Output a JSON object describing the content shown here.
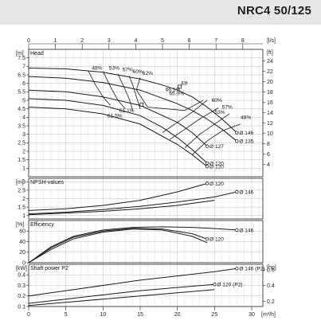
{
  "title": "NRC4 50/125",
  "colors": {
    "curve": "#1a1a1a",
    "grid": "#bdbdbd",
    "header_band": "#e6e6e6"
  },
  "chart_data": [
    {
      "type": "line",
      "panel": "head",
      "title": "Head",
      "unit_left": "[m]",
      "unit_right": "[ft]",
      "unit_top_left": "0",
      "unit_top_right": "[l/s]",
      "top_axis": {
        "label": "[l/s]",
        "ticks": [
          "0",
          "1",
          "2",
          "3",
          "4",
          "5",
          "6",
          "7",
          "8"
        ],
        "values": [
          0,
          1,
          2,
          3,
          4,
          5,
          6,
          7,
          8
        ]
      },
      "bottom_axis": {
        "label": "[m³/h]",
        "ticks": [
          "0",
          "5",
          "10",
          "15",
          "20",
          "25",
          "30"
        ],
        "values": [
          0,
          5,
          10,
          15,
          20,
          25,
          30
        ]
      },
      "xlim": [
        0,
        31.5
      ],
      "ylim": [
        0.5,
        8
      ],
      "yticks": [
        "1",
        "1.5",
        "2",
        "2.5",
        "3",
        "3.5",
        "4",
        "4.5",
        "5",
        "5.5",
        "6",
        "6.5",
        "7",
        "7.5"
      ],
      "ytick_values": [
        1,
        1.5,
        2,
        2.5,
        3,
        3.5,
        4,
        4.5,
        5,
        5.5,
        6,
        6.5,
        7,
        7.5
      ],
      "right_ticks": [
        "4",
        "6",
        "8",
        "10",
        "12",
        "14",
        "16",
        "18",
        "20",
        "22",
        "24"
      ],
      "right_tick_values": [
        4,
        6,
        8,
        10,
        12,
        14,
        16,
        18,
        20,
        22,
        24
      ],
      "series": [
        {
          "name": "Ø 146",
          "x": [
            0,
            5,
            10,
            15,
            18,
            20,
            22,
            24,
            26,
            28
          ],
          "y": [
            6.9,
            6.85,
            6.65,
            6.25,
            5.9,
            5.6,
            5.2,
            4.6,
            3.9,
            3.1
          ]
        },
        {
          "name": "Ø 135",
          "x": [
            0,
            5,
            10,
            15,
            20,
            22,
            24,
            26,
            28
          ],
          "y": [
            6.4,
            6.3,
            6.05,
            5.6,
            4.8,
            4.4,
            3.9,
            3.3,
            2.6
          ]
        },
        {
          "name": "Ø 127",
          "x": [
            0,
            5,
            10,
            15,
            20,
            22,
            24
          ],
          "y": [
            5.6,
            5.5,
            5.2,
            4.7,
            3.7,
            3.1,
            2.3
          ]
        },
        {
          "name": "Ø 120",
          "x": [
            0,
            5,
            10,
            15,
            18,
            20,
            22,
            24
          ],
          "y": [
            5.1,
            5.0,
            4.7,
            4.1,
            3.4,
            2.8,
            2.1,
            1.3
          ]
        },
        {
          "name": "Ø 120",
          "x": [
            0,
            5,
            10,
            15,
            20,
            22,
            24
          ],
          "y": [
            4.6,
            4.5,
            4.2,
            3.6,
            2.4,
            1.8,
            1.1
          ]
        }
      ],
      "efficiency_labels": [
        "48%",
        "53%",
        "57%",
        "60%",
        "62%",
        "61.1%",
        "Eff",
        "66.1%",
        "65.0%",
        "61.5%",
        "60%",
        "57%",
        "53%",
        "48%"
      ],
      "point_labels": [
        "Ø 146",
        "Ø 135",
        "Ø 127",
        "Ø 120"
      ]
    },
    {
      "type": "line",
      "panel": "npsh",
      "title": "NPSH-values",
      "unit_left": "[m]",
      "ylim": [
        0.8,
        3.2
      ],
      "yticks": [
        "1",
        "1.5",
        "2",
        "2.5",
        "3"
      ],
      "ytick_values": [
        1,
        1.5,
        2,
        2.5,
        3
      ],
      "series": [
        {
          "name": "Ø 120",
          "x": [
            0,
            5,
            10,
            15,
            20,
            24
          ],
          "y": [
            1.3,
            1.4,
            1.6,
            1.9,
            2.4,
            2.9
          ]
        },
        {
          "name": "Ø 146",
          "x": [
            0,
            5,
            10,
            15,
            20,
            25,
            28
          ],
          "y": [
            1.1,
            1.2,
            1.35,
            1.55,
            1.8,
            2.1,
            2.4
          ]
        },
        {
          "name": "",
          "x": [
            0,
            5,
            10,
            15,
            20,
            25
          ],
          "y": [
            1.05,
            1.15,
            1.25,
            1.4,
            1.6,
            1.9
          ]
        }
      ],
      "point_labels": [
        "Ø 120",
        "Ø 146"
      ]
    },
    {
      "type": "line",
      "panel": "efficiency",
      "title": "Efficiency",
      "unit_left": "[%]",
      "ylim": [
        0,
        80
      ],
      "yticks": [
        "0",
        "20",
        "40",
        "60"
      ],
      "ytick_values": [
        0,
        20,
        40,
        60
      ],
      "series": [
        {
          "name": "Ø 146",
          "x": [
            0,
            3,
            6,
            10,
            14,
            18,
            22,
            26,
            28
          ],
          "y": [
            0,
            30,
            50,
            62,
            67,
            68,
            67,
            64,
            62
          ]
        },
        {
          "name": "Ø 120",
          "x": [
            0,
            3,
            6,
            10,
            14,
            18,
            22,
            24
          ],
          "y": [
            0,
            28,
            48,
            60,
            65,
            64,
            55,
            45
          ]
        },
        {
          "name": "",
          "x": [
            0,
            3,
            6,
            10,
            14,
            18,
            22,
            24
          ],
          "y": [
            0,
            25,
            45,
            58,
            64,
            62,
            50,
            38
          ]
        }
      ],
      "point_labels": [
        "Ø 146",
        "Ø 120"
      ]
    },
    {
      "type": "line",
      "panel": "power",
      "title": "Shaft power P2",
      "unit_left": "[kW]",
      "unit_right": "[hp]",
      "ylim": [
        0.1,
        0.5
      ],
      "yticks": [
        "0.1",
        "0.2",
        "0.3",
        "0.4"
      ],
      "ytick_values": [
        0.1,
        0.2,
        0.3,
        0.4
      ],
      "right_ticks": [
        "0.2",
        "0.4",
        "0.6"
      ],
      "right_tick_values": [
        0.2,
        0.4,
        0.6
      ],
      "series": [
        {
          "name": "Ø 146 (P2)",
          "x": [
            0,
            5,
            10,
            15,
            20,
            25,
            28
          ],
          "y": [
            0.2,
            0.25,
            0.3,
            0.35,
            0.39,
            0.43,
            0.46
          ]
        },
        {
          "name": "Ø 120 (P2)",
          "x": [
            0,
            5,
            10,
            15,
            20,
            25
          ],
          "y": [
            0.13,
            0.17,
            0.21,
            0.25,
            0.28,
            0.31
          ]
        },
        {
          "name": "",
          "x": [
            0,
            5,
            10,
            15,
            20,
            25
          ],
          "y": [
            0.11,
            0.14,
            0.17,
            0.2,
            0.23,
            0.26
          ]
        }
      ],
      "point_labels": [
        "Ø 146 (P2)",
        "Ø 120 (P2)"
      ]
    }
  ]
}
